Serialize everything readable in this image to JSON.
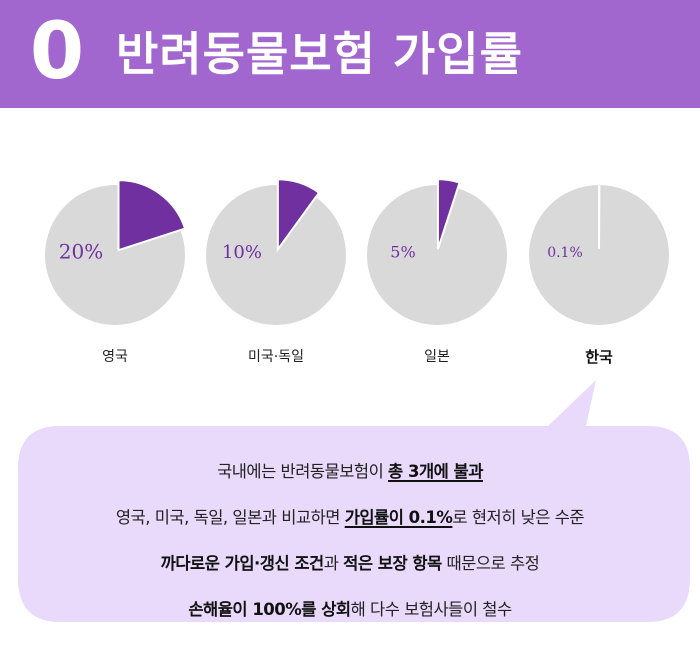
{
  "header": {
    "number": "0",
    "title": "반려동물보험 가입률"
  },
  "chart_data": {
    "type": "pie",
    "categories": [
      "영국",
      "미국·독일",
      "일본",
      "한국"
    ],
    "values": [
      20,
      10,
      5,
      0.1
    ],
    "value_labels": [
      "20%",
      "10%",
      "5%",
      "0.1%"
    ],
    "highlight_category": "한국",
    "colors": {
      "slice": "#7030a0",
      "rest": "#d9d9d9",
      "value_text": "#7030a0"
    }
  },
  "callout": {
    "background": "#e9d9fb",
    "lines": [
      [
        {
          "text": "국내에는 반려동물보험이 ",
          "style": "normal"
        },
        {
          "text": "총 3개에 불과",
          "style": "bold-underline"
        }
      ],
      [
        {
          "text": "영국, 미국, 독일, 일본과 비교하면 ",
          "style": "normal"
        },
        {
          "text": "가입률이 0.1%",
          "style": "bold-underline"
        },
        {
          "text": "로 현저히 낮은 수준",
          "style": "normal"
        }
      ],
      [
        {
          "text": "까다로운 가입·갱신 조건",
          "style": "bold"
        },
        {
          "text": "과 ",
          "style": "normal"
        },
        {
          "text": "적은 보장 항목",
          "style": "bold"
        },
        {
          "text": " 때문으로 추정",
          "style": "normal"
        }
      ],
      [
        {
          "text": "손해율이 100%를 상회",
          "style": "bold"
        },
        {
          "text": "해 다수 보험사들이 철수",
          "style": "normal"
        }
      ]
    ]
  }
}
